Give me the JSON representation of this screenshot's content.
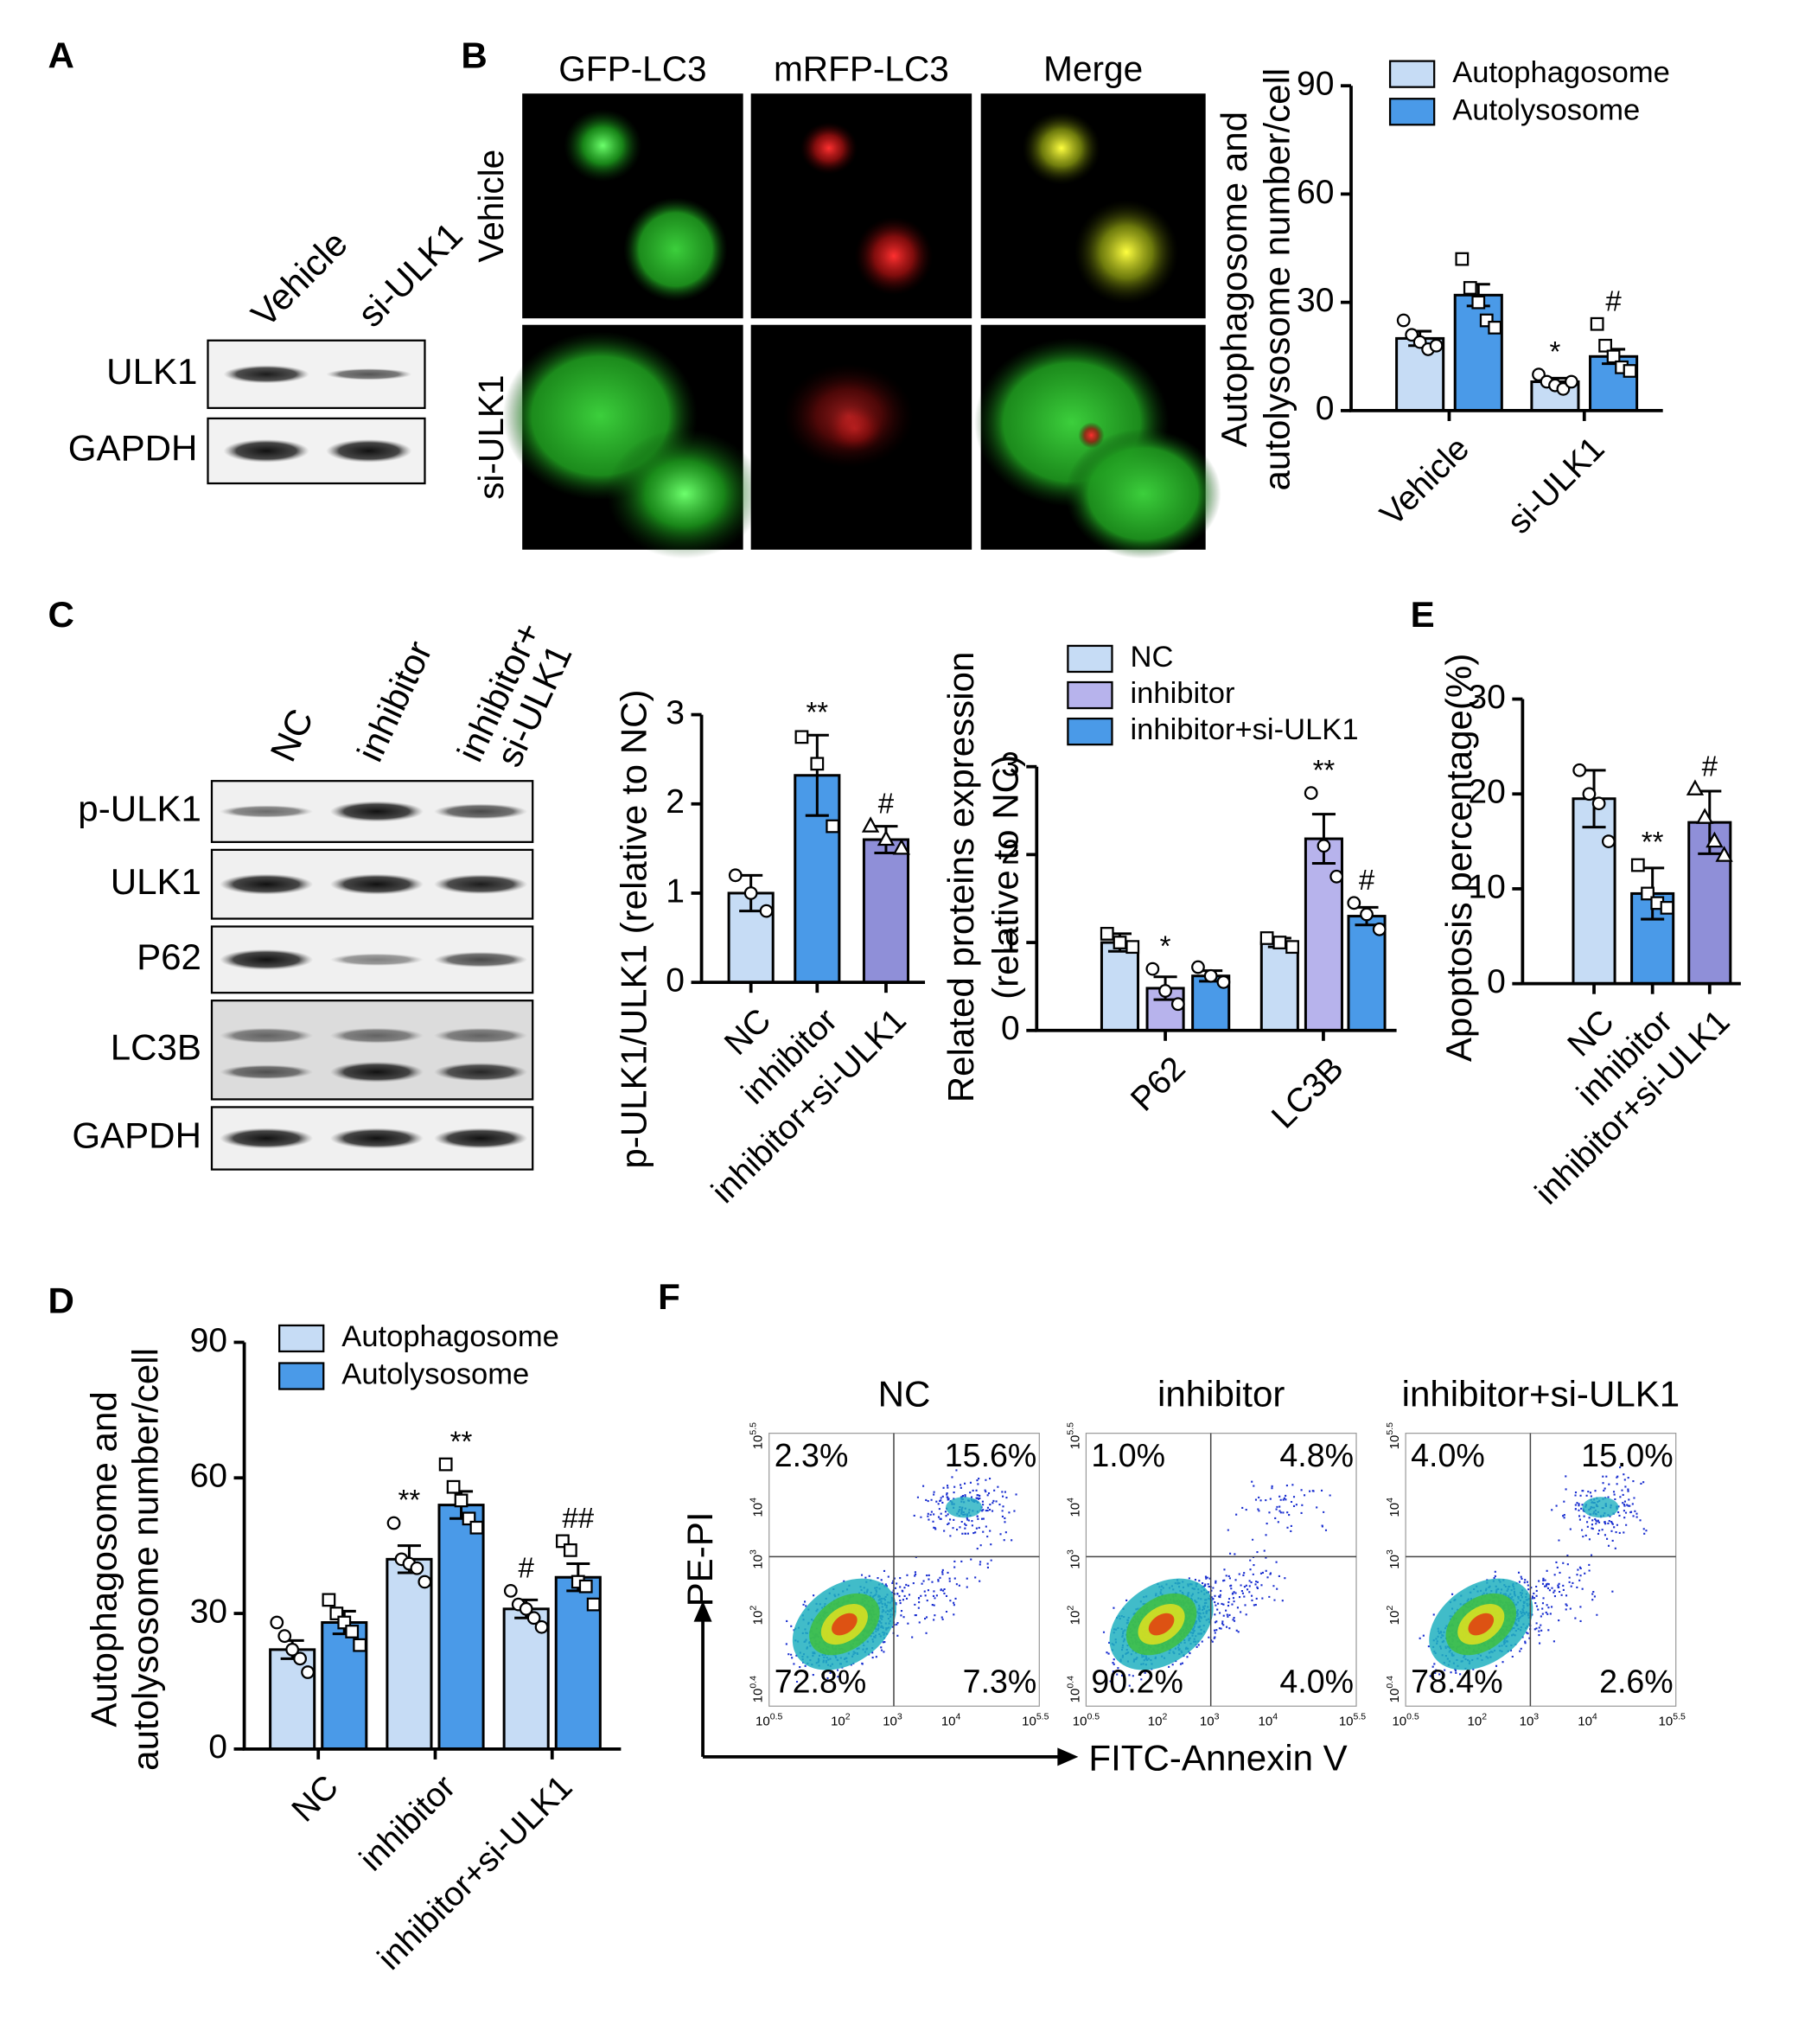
{
  "panel_labels": [
    "A",
    "B",
    "C",
    "D",
    "E",
    "F"
  ],
  "panel_a": {
    "columns": [
      "Vehicle",
      "si-ULK1"
    ],
    "rows": [
      "ULK1",
      "GAPDH"
    ]
  },
  "panel_b_images": {
    "columns": [
      "GFP-LC3",
      "mRFP-LC3",
      "Merge"
    ],
    "rows": [
      "Vehicle",
      "si-ULK1"
    ]
  },
  "panel_c_blot": {
    "columns": [
      [
        "NC"
      ],
      [
        "inhibitor"
      ],
      [
        "inhibitor+",
        "si-ULK1"
      ]
    ],
    "rows": [
      "p-ULK1",
      "ULK1",
      "P62",
      "LC3B",
      "GAPDH"
    ]
  },
  "chart_data": [
    {
      "type": "bar",
      "y_label": [
        "Autophagosome and",
        "autolysosome number/cell"
      ],
      "categories": [
        "Vehicle",
        "si-ULK1"
      ],
      "series": [
        {
          "name": "Autophagosome",
          "color": "#c6dcf5",
          "marker": "circle",
          "values": [
            20,
            8
          ],
          "errors": [
            2,
            1
          ],
          "points": [
            [
              25,
              21,
              19,
              17,
              18
            ],
            [
              10,
              8,
              7,
              6,
              8
            ]
          ],
          "annotations": [
            null,
            "*"
          ]
        },
        {
          "name": "Autolysosome",
          "color": "#4a9ae8",
          "marker": "square",
          "values": [
            32,
            15
          ],
          "errors": [
            3,
            2
          ],
          "points": [
            [
              42,
              34,
              30,
              25,
              23
            ],
            [
              24,
              18,
              15,
              12,
              11
            ]
          ],
          "annotations": [
            null,
            "#"
          ]
        }
      ],
      "ylim": [
        0,
        90
      ],
      "yticks": [
        0,
        30,
        60,
        90
      ],
      "legend": "upper right"
    },
    {
      "type": "bar",
      "y_label": [
        "p-ULK1/ULK1 (relative to NC)"
      ],
      "categories": [
        "NC",
        "inhibitor",
        "inhibitor+si-ULK1"
      ],
      "values": [
        1.0,
        2.32,
        1.6
      ],
      "errors": [
        0.2,
        0.45,
        0.15
      ],
      "colors": [
        "#c6dcf5",
        "#4a9ae8",
        "#8f8fd8"
      ],
      "markers": [
        "circle",
        "square",
        "triangle"
      ],
      "points": [
        [
          1.2,
          1.0,
          0.8
        ],
        [
          2.75,
          2.45,
          1.75
        ],
        [
          1.75,
          1.6,
          1.5
        ]
      ],
      "annotations": [
        null,
        "**",
        "#"
      ],
      "ylim": [
        0,
        3
      ],
      "yticks": [
        0,
        1,
        2,
        3
      ]
    },
    {
      "type": "bar",
      "y_label": [
        "Related proteins expression",
        "(relative to NC)"
      ],
      "categories": [
        "P62",
        "LC3B"
      ],
      "series": [
        {
          "name": "NC",
          "color": "#c6dcf5",
          "marker": "square",
          "values": [
            1.0,
            1.0
          ],
          "errors": [
            0.1,
            0.05
          ],
          "points": [
            [
              1.1,
              1.0,
              0.95
            ],
            [
              1.05,
              1.0,
              0.95
            ]
          ],
          "annotations": [
            null,
            null
          ]
        },
        {
          "name": "inhibitor",
          "color": "#b7b3ec",
          "marker": "circle",
          "values": [
            0.48,
            2.18
          ],
          "errors": [
            0.13,
            0.28
          ],
          "points": [
            [
              0.7,
              0.45,
              0.3
            ],
            [
              2.7,
              2.1,
              1.75
            ]
          ],
          "annotations": [
            "*",
            "**"
          ]
        },
        {
          "name": "inhibitor+si-ULK1",
          "color": "#4a9ae8",
          "marker": "circle",
          "values": [
            0.62,
            1.3
          ],
          "errors": [
            0.06,
            0.1
          ],
          "points": [
            [
              0.72,
              0.62,
              0.55
            ],
            [
              1.45,
              1.32,
              1.15
            ]
          ],
          "annotations": [
            null,
            "#"
          ]
        }
      ],
      "ylim": [
        0,
        3
      ],
      "yticks": [
        0,
        1,
        2,
        3
      ],
      "legend": "upper right"
    },
    {
      "type": "bar",
      "y_label": [
        "Apoptosis percentage(%)"
      ],
      "categories": [
        "NC",
        "inhibitor",
        "inhibitor+si-ULK1"
      ],
      "values": [
        19.5,
        9.5,
        17
      ],
      "errors": [
        3,
        2.7,
        3.3
      ],
      "colors": [
        "#c6dcf5",
        "#4a9ae8",
        "#8f8fd8"
      ],
      "markers": [
        "circle",
        "square",
        "triangle"
      ],
      "points": [
        [
          22.5,
          20,
          19,
          15
        ],
        [
          12.5,
          9.5,
          8.5,
          8
        ],
        [
          20.5,
          17.5,
          15,
          13.5
        ]
      ],
      "annotations": [
        null,
        "**",
        "#"
      ],
      "ylim": [
        0,
        30
      ],
      "yticks": [
        0,
        10,
        20,
        30
      ]
    },
    {
      "type": "bar",
      "y_label": [
        "Autophagosome and",
        "autolysosome number/cell"
      ],
      "categories": [
        "NC",
        "inhibitor",
        "inhibitor+si-ULK1"
      ],
      "series": [
        {
          "name": "Autophagosome",
          "color": "#c6dcf5",
          "marker": "circle",
          "values": [
            22,
            42,
            31
          ],
          "errors": [
            2,
            3,
            2
          ],
          "points": [
            [
              28,
              25,
              22,
              20,
              17
            ],
            [
              50,
              42,
              41,
              40,
              37
            ],
            [
              35,
              32,
              31,
              29,
              27
            ]
          ],
          "annotations": [
            null,
            "**",
            "#"
          ]
        },
        {
          "name": "Autolysosome",
          "color": "#4a9ae8",
          "marker": "square",
          "values": [
            28,
            54,
            38
          ],
          "errors": [
            2.5,
            3,
            3
          ],
          "points": [
            [
              33,
              30,
              28,
              26,
              23
            ],
            [
              63,
              58,
              55,
              51,
              49
            ],
            [
              46,
              44,
              37,
              36,
              32
            ]
          ],
          "annotations": [
            null,
            "**",
            "##"
          ]
        }
      ],
      "ylim": [
        0,
        90
      ],
      "yticks": [
        0,
        30,
        60,
        90
      ],
      "legend": "upper left"
    }
  ],
  "panel_f": {
    "x_label": "FITC-Annexin V",
    "y_label": "PE-PI",
    "x_ticks": [
      {
        "base": "10",
        "exp": "0.5"
      },
      {
        "base": "10",
        "exp": "2"
      },
      {
        "base": "10",
        "exp": "3"
      },
      {
        "base": "10",
        "exp": "4"
      },
      {
        "base": "10",
        "exp": "5.5"
      }
    ],
    "y_ticks": [
      {
        "base": "10",
        "exp": "0.4"
      },
      {
        "base": "10",
        "exp": "2"
      },
      {
        "base": "10",
        "exp": "3"
      },
      {
        "base": "10",
        "exp": "4"
      },
      {
        "base": "10",
        "exp": "5.5"
      }
    ],
    "plots": [
      {
        "title": "NC",
        "upper_left": "2.3%",
        "upper_right": "15.6%",
        "lower_left": "72.8%",
        "lower_right": "7.3%"
      },
      {
        "title": "inhibitor",
        "upper_left": "1.0%",
        "upper_right": "4.8%",
        "lower_left": "90.2%",
        "lower_right": "4.0%"
      },
      {
        "title": "inhibitor+si-ULK1",
        "upper_left": "4.0%",
        "upper_right": "15.0%",
        "lower_left": "78.4%",
        "lower_right": "2.6%"
      }
    ]
  }
}
